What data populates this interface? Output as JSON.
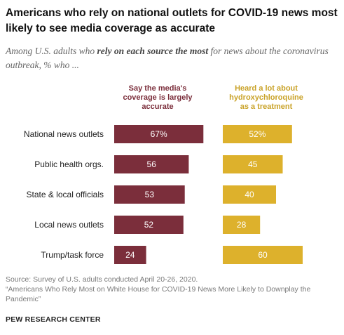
{
  "header": {
    "title": "Americans who rely on national outlets for COVID-19 news most likely to see media coverage as accurate",
    "subtitle_pre": "Among U.S. adults who ",
    "subtitle_bold": "rely on each source the most",
    "subtitle_post": " for news about the coronavirus outbreak, % who ..."
  },
  "chart_data": {
    "type": "bar",
    "orientation": "horizontal",
    "categories": [
      "National news outlets",
      "Public health orgs.",
      "State & local officials",
      "Local news outlets",
      "Trump/task force"
    ],
    "series": [
      {
        "name": "Say the media's coverage is largely accurate",
        "values": [
          67,
          56,
          53,
          52,
          24
        ],
        "labels": [
          "67%",
          "56",
          "53",
          "52",
          "24"
        ],
        "color": "#7b2e3b"
      },
      {
        "name": "Heard a lot about hydroxychloroquine as a treatment",
        "values": [
          52,
          45,
          40,
          28,
          60
        ],
        "labels": [
          "52%",
          "45",
          "40",
          "28",
          "60"
        ],
        "color": "#ddb12c"
      }
    ],
    "series_headers": [
      [
        "Say the media's",
        "coverage is largely",
        "accurate"
      ],
      [
        "Heard a lot about",
        "hydroxychloroquine",
        "as a treatment"
      ]
    ],
    "header_colors": [
      "#7b2e3b",
      "#c9a227"
    ],
    "xlim": [
      0,
      100
    ],
    "grid": false,
    "legend": "column headers above bars"
  },
  "footer": {
    "source": "Source: Survey of U.S. adults conducted April 20-26, 2020.",
    "report": "“Americans Who Rely Most on White House for COVID-19 News More Likely to Downplay the Pandemic”",
    "brand": "PEW RESEARCH CENTER"
  }
}
